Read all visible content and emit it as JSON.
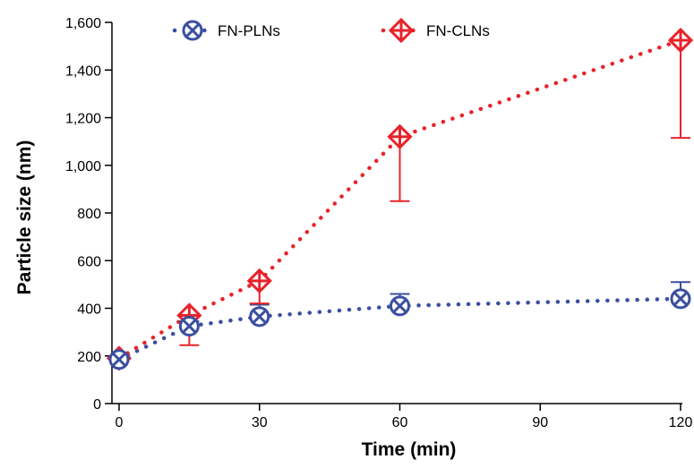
{
  "chart_data": {
    "type": "line",
    "title": "",
    "xlabel": "Time (min)",
    "ylabel": "Particle size (nm)",
    "xlim": [
      0,
      120
    ],
    "ylim": [
      0,
      1600
    ],
    "x_ticks": [
      {
        "value": 0,
        "label": "0"
      },
      {
        "value": 30,
        "label": "30"
      },
      {
        "value": 60,
        "label": "60"
      },
      {
        "value": 90,
        "label": "90"
      },
      {
        "value": 120,
        "label": "120"
      }
    ],
    "y_ticks": [
      {
        "value": 0,
        "label": "0"
      },
      {
        "value": 200,
        "label": "200"
      },
      {
        "value": 400,
        "label": "400"
      },
      {
        "value": 600,
        "label": "600"
      },
      {
        "value": 800,
        "label": "800"
      },
      {
        "value": 1000,
        "label": "1,000"
      },
      {
        "value": 1200,
        "label": "1,200"
      },
      {
        "value": 1400,
        "label": "1,400"
      },
      {
        "value": 1600,
        "label": "1,600"
      }
    ],
    "grid": false,
    "legend_position": "top",
    "series": [
      {
        "name": "FN-PLNs",
        "color": "#3b4fa0",
        "marker": "circle-x",
        "line_style": "dotted",
        "x": [
          0,
          15,
          30,
          60,
          120
        ],
        "y": [
          185,
          325,
          365,
          410,
          440
        ],
        "error_upper": [
          0,
          20,
          50,
          50,
          70
        ],
        "error_lower": [
          0,
          0,
          0,
          0,
          0
        ]
      },
      {
        "name": "FN-CLNs",
        "color": "#e8232a",
        "marker": "diamond-plus",
        "line_style": "dotted",
        "x": [
          0,
          15,
          30,
          60,
          120
        ],
        "y": [
          190,
          370,
          515,
          1120,
          1525
        ],
        "error_upper": [
          0,
          0,
          0,
          0,
          0
        ],
        "error_lower": [
          0,
          125,
          95,
          270,
          410
        ]
      }
    ]
  }
}
